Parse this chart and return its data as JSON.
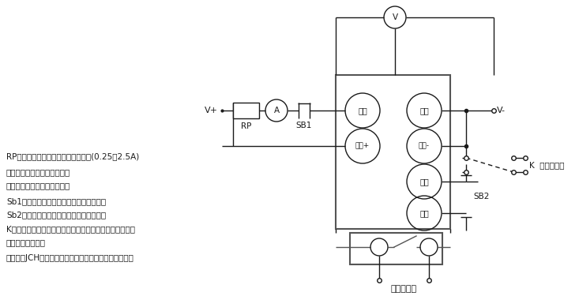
{
  "bg_color": "#ffffff",
  "line_color": "#1a1a1a",
  "gray_color": "#555555",
  "text_color": "#1a1a1a",
  "font": "SimSun",
  "desc1": "RP为大功率滑成变阻器用来调节电流(0.25～2.5A)",
  "desc2_prefix": "Ⓐ",
  "desc2_suffix": "为安培表用来监视合闸电流",
  "desc3_prefix": "Ⓥ",
  "desc3_suffix": "为电压表用来监视额定电压",
  "desc4": "Sb1为常闭按钮，用来复位合闸保持电流。",
  "desc5": "Sb2为常开按钮，用来测试放电闭锁功能。",
  "desc6": "K为刀开关或同一继电器的两付同时动作的常开触点，用来",
  "desc7": "控制延时的启动。",
  "desc8": "另有一付JCH常开触点接秒表停止，用来停止秒表计时。"
}
